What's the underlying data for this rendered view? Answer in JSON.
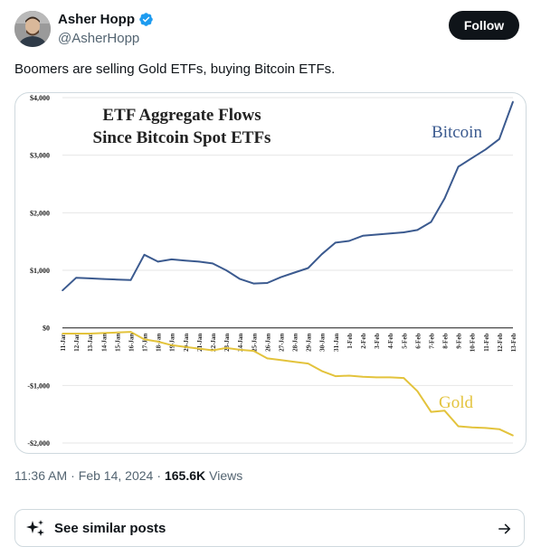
{
  "author": {
    "name": "Asher Hopp",
    "handle": "@AsherHopp"
  },
  "follow_label": "Follow",
  "tweet_text": "Boomers are selling Gold ETFs, buying Bitcoin ETFs.",
  "meta": {
    "time": "11:36 AM",
    "separator": "·",
    "date": "Feb 14, 2024",
    "views_count": "165.6K",
    "views_label": "Views"
  },
  "see_similar_label": "See similar posts",
  "icons": {
    "verified": "verified-badge-icon",
    "sparkle": "sparkle-icon",
    "arrow": "arrow-right-icon"
  },
  "colors": {
    "bitcoin": "#3b5a8f",
    "gold": "#e3c33c",
    "follow_bg": "#0f1419",
    "verified": "#1d9bf0"
  },
  "chart_data": {
    "type": "line",
    "title_line1": "ETF Aggregate Flows",
    "title_line2": "Since Bitcoin Spot ETFs",
    "ylim": [
      -2000,
      4000
    ],
    "yticks": [
      4000,
      3000,
      2000,
      1000,
      0,
      -1000,
      -2000
    ],
    "ytick_labels": [
      "$4,000",
      "$3,000",
      "$2,000",
      "$1,000",
      "$0",
      "-$1,000",
      "-$2,000"
    ],
    "categories": [
      "11-Jan",
      "12-Jan",
      "13-Jan",
      "14-Jan",
      "15-Jan",
      "16-Jan",
      "17-Jan",
      "18-Jan",
      "19-Jan",
      "20-Jan",
      "21-Jan",
      "22-Jan",
      "23-Jan",
      "24-Jan",
      "25-Jan",
      "26-Jan",
      "27-Jan",
      "28-Jan",
      "29-Jan",
      "30-Jan",
      "31-Jan",
      "1-Feb",
      "2-Feb",
      "3-Feb",
      "4-Feb",
      "5-Feb",
      "6-Feb",
      "7-Feb",
      "8-Feb",
      "9-Feb",
      "10-Feb",
      "11-Feb",
      "12-Feb",
      "13-Feb"
    ],
    "series": [
      {
        "name": "Bitcoin",
        "values": [
          650,
          870,
          860,
          850,
          840,
          830,
          1270,
          1150,
          1190,
          1170,
          1150,
          1120,
          1000,
          850,
          770,
          780,
          880,
          960,
          1040,
          1280,
          1480,
          1510,
          1600,
          1620,
          1640,
          1660,
          1700,
          1840,
          2250,
          2800,
          2950,
          3100,
          3280,
          3930
        ]
      },
      {
        "name": "Gold",
        "values": [
          -100,
          -100,
          -100,
          -90,
          -80,
          -70,
          -200,
          -240,
          -300,
          -330,
          -360,
          -390,
          -350,
          -380,
          -400,
          -530,
          -560,
          -590,
          -620,
          -750,
          -840,
          -830,
          -850,
          -860,
          -860,
          -870,
          -1100,
          -1460,
          -1440,
          -1710,
          -1730,
          -1740,
          -1760,
          -1870
        ]
      }
    ]
  }
}
